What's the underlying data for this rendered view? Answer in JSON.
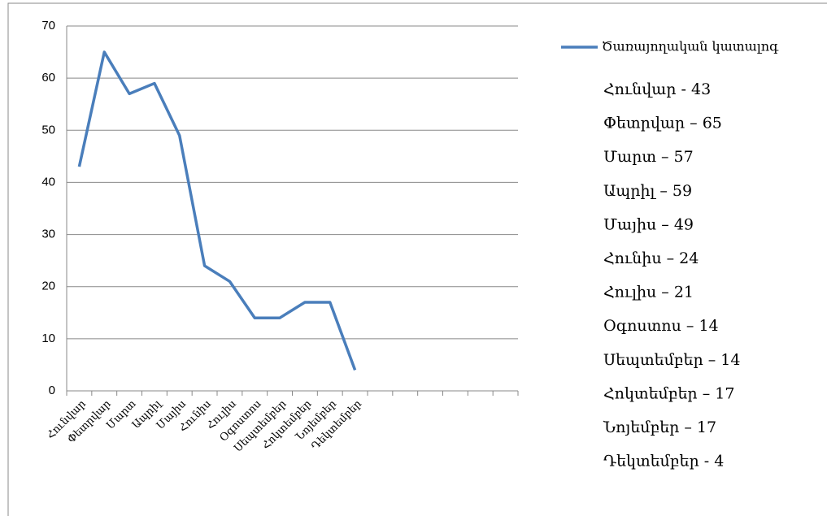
{
  "chart_data": {
    "type": "line",
    "categories": [
      "Հունվար",
      "Փետրվար",
      "Մարտ",
      "Ապրիլ",
      "Մայիս",
      "Հունիս",
      "Հուլիս",
      "Օգոստոս",
      "Սեպտեմբեր",
      "Հոկտեմբեր",
      "Նոյեմբեր",
      "Դեկտեմբեր",
      null,
      null,
      null,
      null,
      null,
      null
    ],
    "series": [
      {
        "name": "Ծառայողական կատալոգ",
        "color": "#4a7ebb",
        "values": [
          43,
          65,
          57,
          59,
          49,
          24,
          21,
          14,
          14,
          17,
          17,
          4,
          null,
          null,
          null,
          null,
          null,
          null
        ]
      }
    ],
    "ylim": [
      0,
      70
    ],
    "yticks": [
      0,
      10,
      20,
      30,
      40,
      50,
      60,
      70
    ],
    "grid": true,
    "legend": "right",
    "annotations": [
      "Հունվար  - 43",
      "Փետրվար – 65",
      "Մարտ – 57",
      "Ապրիլ – 59",
      "Մայիս – 49",
      "Հունիս – 24",
      "Հուլիս – 21",
      "Օգոստոս – 14",
      "Սեպտեմբեր – 14",
      "Հոկտեմբեր – 17",
      "Նոյեմբեր – 17",
      "Դեկտեմբեր - 4"
    ]
  }
}
